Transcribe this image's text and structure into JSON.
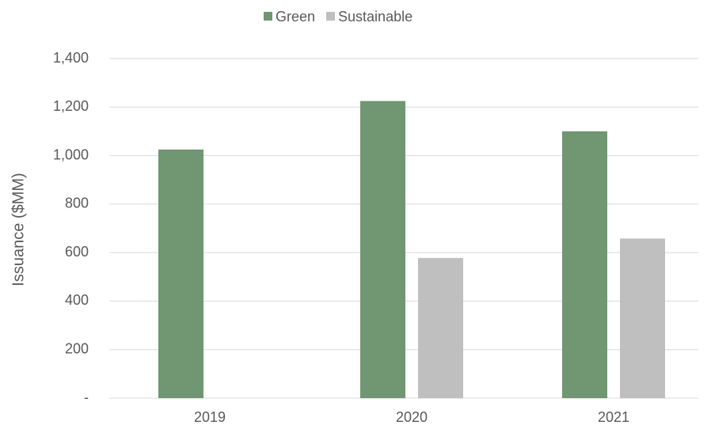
{
  "chart_data": {
    "type": "bar",
    "y_label": "Issuance ($MM)",
    "categories": [
      "2019",
      "2020",
      "2021"
    ],
    "series": [
      {
        "name": "Green",
        "color": "#709672",
        "values": [
          1025,
          1225,
          1100
        ]
      },
      {
        "name": "Sustainable",
        "color": "#bfbfbf",
        "values": [
          0,
          578,
          658
        ]
      }
    ],
    "ylim": [
      0,
      1400
    ],
    "yticks": [
      {
        "value": 0,
        "label": "-"
      },
      200,
      400,
      600,
      800,
      {
        "value": 1000,
        "label": "1,000"
      },
      {
        "value": 1200,
        "label": "1,200"
      },
      {
        "value": 1400,
        "label": "1,400"
      }
    ],
    "grid": true,
    "legend": "top"
  }
}
